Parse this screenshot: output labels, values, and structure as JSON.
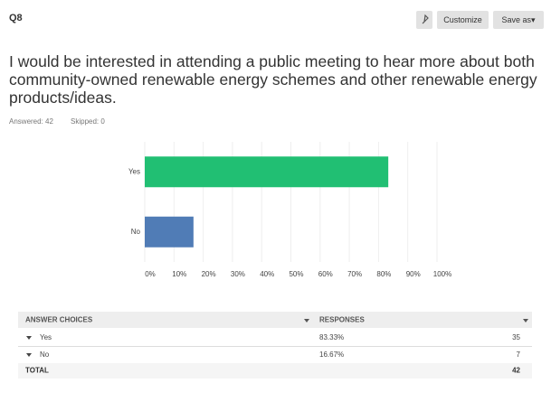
{
  "header": {
    "label": "Q8",
    "buttons": [
      "Customize",
      "Save as"
    ]
  },
  "question": "I would be interested in attending a public meeting to hear more about both community-owned renewable energy schemes and other renewable energy products/ideas.",
  "answered": "Answered: 42",
  "skipped": "Skipped: 0",
  "chart_data": {
    "type": "hbar",
    "categories": [
      "Yes",
      "No"
    ],
    "values": [
      83.33,
      16.67
    ],
    "colors": [
      "#21bf73",
      "#507cb6"
    ],
    "xlim": [
      0,
      100
    ],
    "xticks": [
      {
        "value": 0,
        "label": "0%"
      },
      {
        "value": 10,
        "label": "10%"
      },
      {
        "value": 20,
        "label": "20%"
      },
      {
        "value": 30,
        "label": "30%"
      },
      {
        "value": 40,
        "label": "40%"
      },
      {
        "value": 50,
        "label": "50%"
      },
      {
        "value": 60,
        "label": "60%"
      },
      {
        "value": 70,
        "label": "70%"
      },
      {
        "value": 80,
        "label": "80%"
      },
      {
        "value": 90,
        "label": "90%"
      },
      {
        "value": 100,
        "label": "100%"
      }
    ],
    "grid": true
  },
  "table": {
    "headers": [
      "ANSWER CHOICES",
      "RESPONSES"
    ],
    "rows": [
      [
        "Yes",
        "83.33%",
        "35"
      ],
      [
        "No",
        "16.67%",
        "7"
      ]
    ],
    "total": [
      "TOTAL",
      "42"
    ]
  }
}
